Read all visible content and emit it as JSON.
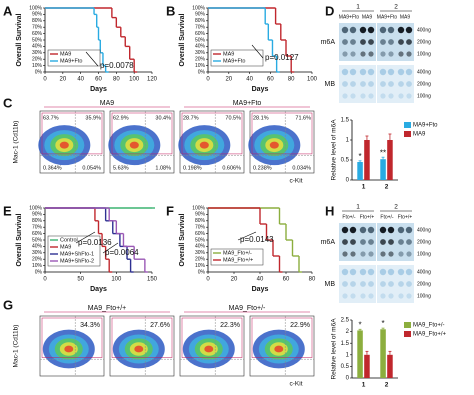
{
  "chart_data": [
    {
      "type": "survival",
      "label": "A",
      "y_label": "Overall Survival",
      "x_label": "Days",
      "xlim": [
        0,
        120
      ],
      "xticks": [
        0,
        20,
        40,
        60,
        80,
        100,
        120
      ],
      "ylim": [
        0,
        100
      ],
      "yticks": [
        {
          "value": 0,
          "label": "0%"
        },
        {
          "value": 10,
          "label": "10%"
        },
        {
          "value": 20,
          "label": "20%"
        },
        {
          "value": 30,
          "label": "30%"
        },
        {
          "value": 40,
          "label": "40%"
        },
        {
          "value": 50,
          "label": "50%"
        },
        {
          "value": 60,
          "label": "60%"
        },
        {
          "value": 70,
          "label": "70%"
        },
        {
          "value": 80,
          "label": "80%"
        },
        {
          "value": 90,
          "label": "90%"
        },
        {
          "value": 100,
          "label": "100%"
        }
      ],
      "series": [
        {
          "name": "MA9",
          "color": "#c0272d",
          "x": [
            0,
            75,
            80,
            85,
            90,
            95,
            100
          ],
          "values": [
            100,
            85,
            70,
            55,
            40,
            20,
            0
          ]
        },
        {
          "name": "MA9+Fto",
          "color": "#29abe2",
          "x": [
            0,
            55,
            58,
            60,
            62,
            65,
            68
          ],
          "values": [
            100,
            90,
            70,
            50,
            30,
            10,
            0
          ]
        }
      ],
      "annotations": [
        "p=0.0078"
      ]
    },
    {
      "type": "survival",
      "label": "B",
      "y_label": "Overall Survival",
      "x_label": "Days",
      "xlim": [
        0,
        100
      ],
      "xticks": [
        0,
        20,
        40,
        60,
        80,
        100
      ],
      "ylim": [
        0,
        100
      ],
      "yticks": [
        {
          "value": 0,
          "label": "0%"
        },
        {
          "value": 10,
          "label": "10%"
        },
        {
          "value": 20,
          "label": "20%"
        },
        {
          "value": 30,
          "label": "30%"
        },
        {
          "value": 40,
          "label": "40%"
        },
        {
          "value": 50,
          "label": "50%"
        },
        {
          "value": 60,
          "label": "60%"
        },
        {
          "value": 70,
          "label": "70%"
        },
        {
          "value": 80,
          "label": "80%"
        },
        {
          "value": 90,
          "label": "90%"
        },
        {
          "value": 100,
          "label": "100%"
        }
      ],
      "series": [
        {
          "name": "MA9",
          "color": "#c0272d",
          "x": [
            0,
            65,
            70,
            75,
            80
          ],
          "values": [
            100,
            75,
            50,
            25,
            0
          ]
        },
        {
          "name": "MA9+Fto",
          "color": "#29abe2",
          "x": [
            0,
            55,
            58,
            62,
            66
          ],
          "values": [
            100,
            75,
            50,
            25,
            0
          ]
        }
      ],
      "annotations": [
        "p=0.0127"
      ]
    },
    {
      "type": "bar",
      "y_label": "Relative level of m6A",
      "categories": [
        "1",
        "2"
      ],
      "ylim": [
        0,
        1.5
      ],
      "yticks": [
        0,
        0.5,
        1,
        1.5
      ],
      "series": [
        {
          "name": "MA9+Fto",
          "color": "#29abe2",
          "values": [
            0.45,
            0.52
          ],
          "errors": [
            0.03,
            0.05
          ]
        },
        {
          "name": "MA9",
          "color": "#c0272d",
          "values": [
            1.0,
            1.0
          ],
          "errors": [
            0.1,
            0.15
          ]
        }
      ],
      "annotations": [
        "*",
        "**"
      ]
    },
    {
      "type": "survival",
      "label": "E",
      "y_label": "Overall Survival",
      "x_label": "Days",
      "xlim": [
        0,
        150
      ],
      "xticks": [
        0,
        50,
        100,
        150
      ],
      "ylim": [
        0,
        100
      ],
      "yticks": [
        {
          "value": 0,
          "label": "0%"
        },
        {
          "value": 10,
          "label": "10%"
        },
        {
          "value": 20,
          "label": "20%"
        },
        {
          "value": 30,
          "label": "30%"
        },
        {
          "value": 40,
          "label": "40%"
        },
        {
          "value": 50,
          "label": "50%"
        },
        {
          "value": 60,
          "label": "60%"
        },
        {
          "value": 70,
          "label": "70%"
        },
        {
          "value": 80,
          "label": "80%"
        },
        {
          "value": 90,
          "label": "90%"
        },
        {
          "value": 100,
          "label": "100%"
        }
      ],
      "series": [
        {
          "name": "Control",
          "color": "#3cb371",
          "x": [
            0,
            150
          ],
          "values": [
            100,
            100
          ]
        },
        {
          "name": "MA9",
          "color": "#c0272d",
          "x": [
            0,
            70,
            75,
            80,
            85,
            90
          ],
          "values": [
            100,
            80,
            60,
            40,
            20,
            0
          ]
        },
        {
          "name": "MA9+ShFto-1",
          "color": "#2e3192",
          "x": [
            0,
            85,
            95,
            105,
            115,
            120
          ],
          "values": [
            100,
            80,
            60,
            40,
            20,
            0
          ]
        },
        {
          "name": "MA9+ShFto-2",
          "color": "#9b59b6",
          "x": [
            0,
            90,
            100,
            110,
            125,
            140
          ],
          "values": [
            100,
            80,
            60,
            40,
            20,
            0
          ]
        }
      ],
      "annotations": [
        "p=0.0136",
        "p=0.0064"
      ]
    },
    {
      "type": "survival",
      "label": "F",
      "y_label": "Overall Survival",
      "x_label": "Days",
      "xlim": [
        0,
        80
      ],
      "xticks": [
        0,
        20,
        40,
        60,
        80
      ],
      "ylim": [
        0,
        100
      ],
      "yticks": [
        {
          "value": 0,
          "label": "0%"
        },
        {
          "value": 10,
          "label": "10%"
        },
        {
          "value": 20,
          "label": "20%"
        },
        {
          "value": 30,
          "label": "30%"
        },
        {
          "value": 40,
          "label": "40%"
        },
        {
          "value": 50,
          "label": "50%"
        },
        {
          "value": 60,
          "label": "60%"
        },
        {
          "value": 70,
          "label": "70%"
        },
        {
          "value": 80,
          "label": "80%"
        },
        {
          "value": 90,
          "label": "90%"
        },
        {
          "value": 100,
          "label": "100%"
        }
      ],
      "series": [
        {
          "name": "MA9_Fto+/-",
          "color": "#8cae3e",
          "x": [
            0,
            55,
            60,
            65,
            70
          ],
          "values": [
            100,
            75,
            50,
            25,
            0
          ]
        },
        {
          "name": "MA9_Fto+/+",
          "color": "#c0272d",
          "x": [
            0,
            40,
            45,
            50,
            55
          ],
          "values": [
            100,
            75,
            50,
            25,
            0
          ]
        }
      ],
      "annotations": [
        "p=0.0143"
      ]
    },
    {
      "type": "bar",
      "y_label": "Relative level of m6A",
      "categories": [
        "1",
        "2"
      ],
      "ylim": [
        0,
        2.5
      ],
      "yticks": [
        0,
        0.5,
        1,
        1.5,
        2,
        2.5
      ],
      "series": [
        {
          "name": "MA9_Fto+/-",
          "color": "#8cae3e",
          "values": [
            2.05,
            2.1
          ],
          "errors": [
            0.05,
            0.05
          ]
        },
        {
          "name": "MA9_Fto+/+",
          "color": "#c0272d",
          "values": [
            1.0,
            1.0
          ],
          "errors": [
            0.15,
            0.15
          ]
        }
      ],
      "annotations": [
        "*",
        "*"
      ]
    }
  ],
  "flow_panels": [
    {
      "label": "C",
      "groups": [
        "MA9",
        "MA9+Fto"
      ],
      "y_label": "Mac-1 (Cd11b)",
      "x_label": "c-Kit",
      "plots": [
        [
          "63.7%",
          "35.9%",
          "0.364%",
          "0.054%"
        ],
        [
          "62.9%",
          "30.4%",
          "5.63%",
          "1.08%"
        ],
        [
          "28.7%",
          "70.5%",
          "0.198%",
          "0.606%"
        ],
        [
          "28.1%",
          "71.6%",
          "0.238%",
          "0.034%"
        ]
      ]
    },
    {
      "label": "G",
      "groups": [
        "MA9_Fto+/+",
        "MA9_Fto+/-"
      ],
      "y_label": "Mac-1 (Cd11b)",
      "x_label": "c-Kit",
      "plots": [
        [
          "34.3%"
        ],
        [
          "27.6%"
        ],
        [
          "22.3%"
        ],
        [
          "22.9%"
        ]
      ]
    }
  ],
  "blots": [
    {
      "label": "D",
      "groups": [
        {
          "number": "1",
          "names": [
            "MA9+Fto",
            "MA9"
          ]
        },
        {
          "number": "2",
          "names": [
            "MA9+Fto",
            "MA9"
          ]
        }
      ],
      "rows": [
        "m6A",
        "MB"
      ],
      "amounts": [
        "400ng",
        "200ng",
        "100ng"
      ]
    },
    {
      "label": "H",
      "groups": [
        {
          "number": "1",
          "names": [
            "Fto+/-",
            "Fto+/+"
          ]
        },
        {
          "number": "2",
          "names": [
            "Fto+/-",
            "Fto+/+"
          ]
        }
      ],
      "rows": [
        "m6A",
        "MB"
      ],
      "amounts": [
        "400ng",
        "200ng",
        "100ng"
      ]
    }
  ]
}
